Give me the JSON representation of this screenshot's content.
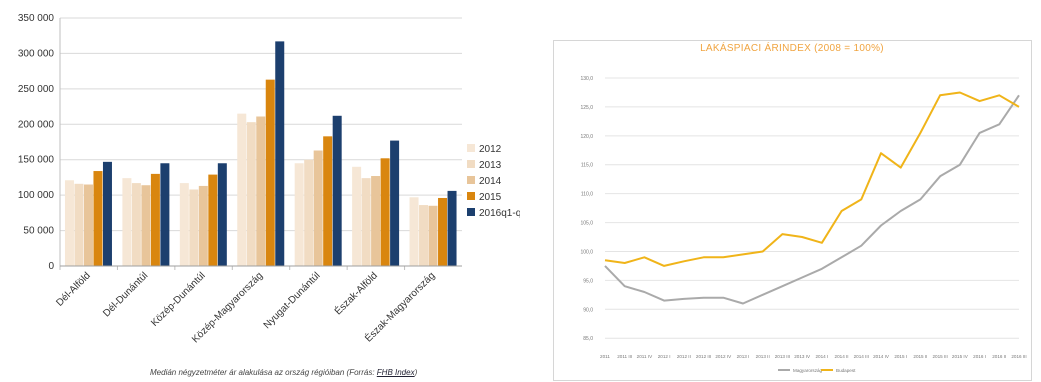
{
  "left": {
    "caption_prefix": "Medián négyzetméter ár alakulása az ország régióiban (Forrás: ",
    "caption_source": "FHB Index",
    "caption_suffix": ")"
  },
  "right": {
    "title": "LAKÁSPIACI ÁRINDEX (2008 = 100%)"
  },
  "chart_data": [
    {
      "type": "bar",
      "categories": [
        "Dél-Alföld",
        "Dél-Dunántúl",
        "Közép-Dunántúl",
        "Közép-Magyarország",
        "Nyugat-Dunántúl",
        "Észak-Alföld",
        "Észak-Magyarország"
      ],
      "series": [
        {
          "name": "2012",
          "color": "#f6e7d6",
          "values": [
            121000,
            124000,
            117000,
            215000,
            145000,
            140000,
            97000
          ]
        },
        {
          "name": "2013",
          "color": "#f1dcc3",
          "values": [
            116000,
            117000,
            108000,
            203000,
            150000,
            124000,
            86000
          ]
        },
        {
          "name": "2014",
          "color": "#e8c59a",
          "values": [
            115000,
            114000,
            113000,
            211000,
            163000,
            127000,
            85000
          ]
        },
        {
          "name": "2015",
          "color": "#d9860f",
          "values": [
            134000,
            130000,
            129000,
            263000,
            183000,
            152000,
            96000
          ]
        },
        {
          "name": "2016q1-q3",
          "color": "#1c3f6e",
          "values": [
            147000,
            145000,
            145000,
            317000,
            212000,
            177000,
            106000
          ]
        }
      ],
      "yticks": [
        "0",
        "50 000",
        "100 000",
        "150 000",
        "200 000",
        "250 000",
        "300 000",
        "350 000"
      ],
      "ylim": [
        0,
        350000
      ],
      "legend": "right",
      "grid": true
    },
    {
      "type": "line",
      "title": "LAKÁSPIACI ÁRINDEX (2008 = 100%)",
      "x": [
        "2011",
        "2011",
        "2011",
        "2012",
        "2012",
        "2012",
        "2012",
        "2013",
        "2013",
        "2013",
        "2013",
        "2014",
        "2014",
        "2014",
        "2014",
        "2015",
        "2015",
        "2015",
        "2015",
        "2016",
        "2016",
        "2016"
      ],
      "xtick_labels": [
        "2011",
        "2011 III",
        "2011 IV",
        "2012 I",
        "2012 II",
        "2012 III",
        "2012 IV",
        "2013 I",
        "2013 II",
        "2013 III",
        "2013 IV",
        "2014 I",
        "2014 II",
        "2014 III",
        "2014 IV",
        "2015 I",
        "2015 II",
        "2015 III",
        "2015 IV",
        "2016 I",
        "2016 II",
        "2016 III"
      ],
      "ytick_labels": [
        "85,0",
        "90,0",
        "95,0",
        "100,0",
        "105,0",
        "110,0",
        "115,0",
        "120,0",
        "125,0",
        "130,0"
      ],
      "ylim": [
        84,
        130
      ],
      "series": [
        {
          "name": "Magyarország",
          "color": "#aaaaaa",
          "values": [
            97.5,
            94.0,
            93.0,
            91.5,
            91.8,
            92.0,
            92.0,
            91.0,
            92.5,
            94.0,
            95.5,
            97.0,
            99.0,
            101.0,
            104.5,
            107.0,
            109.0,
            113.0,
            115.0,
            120.5,
            122.0,
            127.0
          ]
        },
        {
          "name": "Budapest",
          "color": "#f0b419",
          "values": [
            98.5,
            98.0,
            99.0,
            97.5,
            98.3,
            99.0,
            99.0,
            99.5,
            100.0,
            103.0,
            102.5,
            101.5,
            107.0,
            109.0,
            117.0,
            114.5,
            120.5,
            127.0,
            127.5,
            126.0,
            127.0,
            125.0
          ]
        }
      ],
      "legend": "bottom",
      "grid": true
    }
  ]
}
